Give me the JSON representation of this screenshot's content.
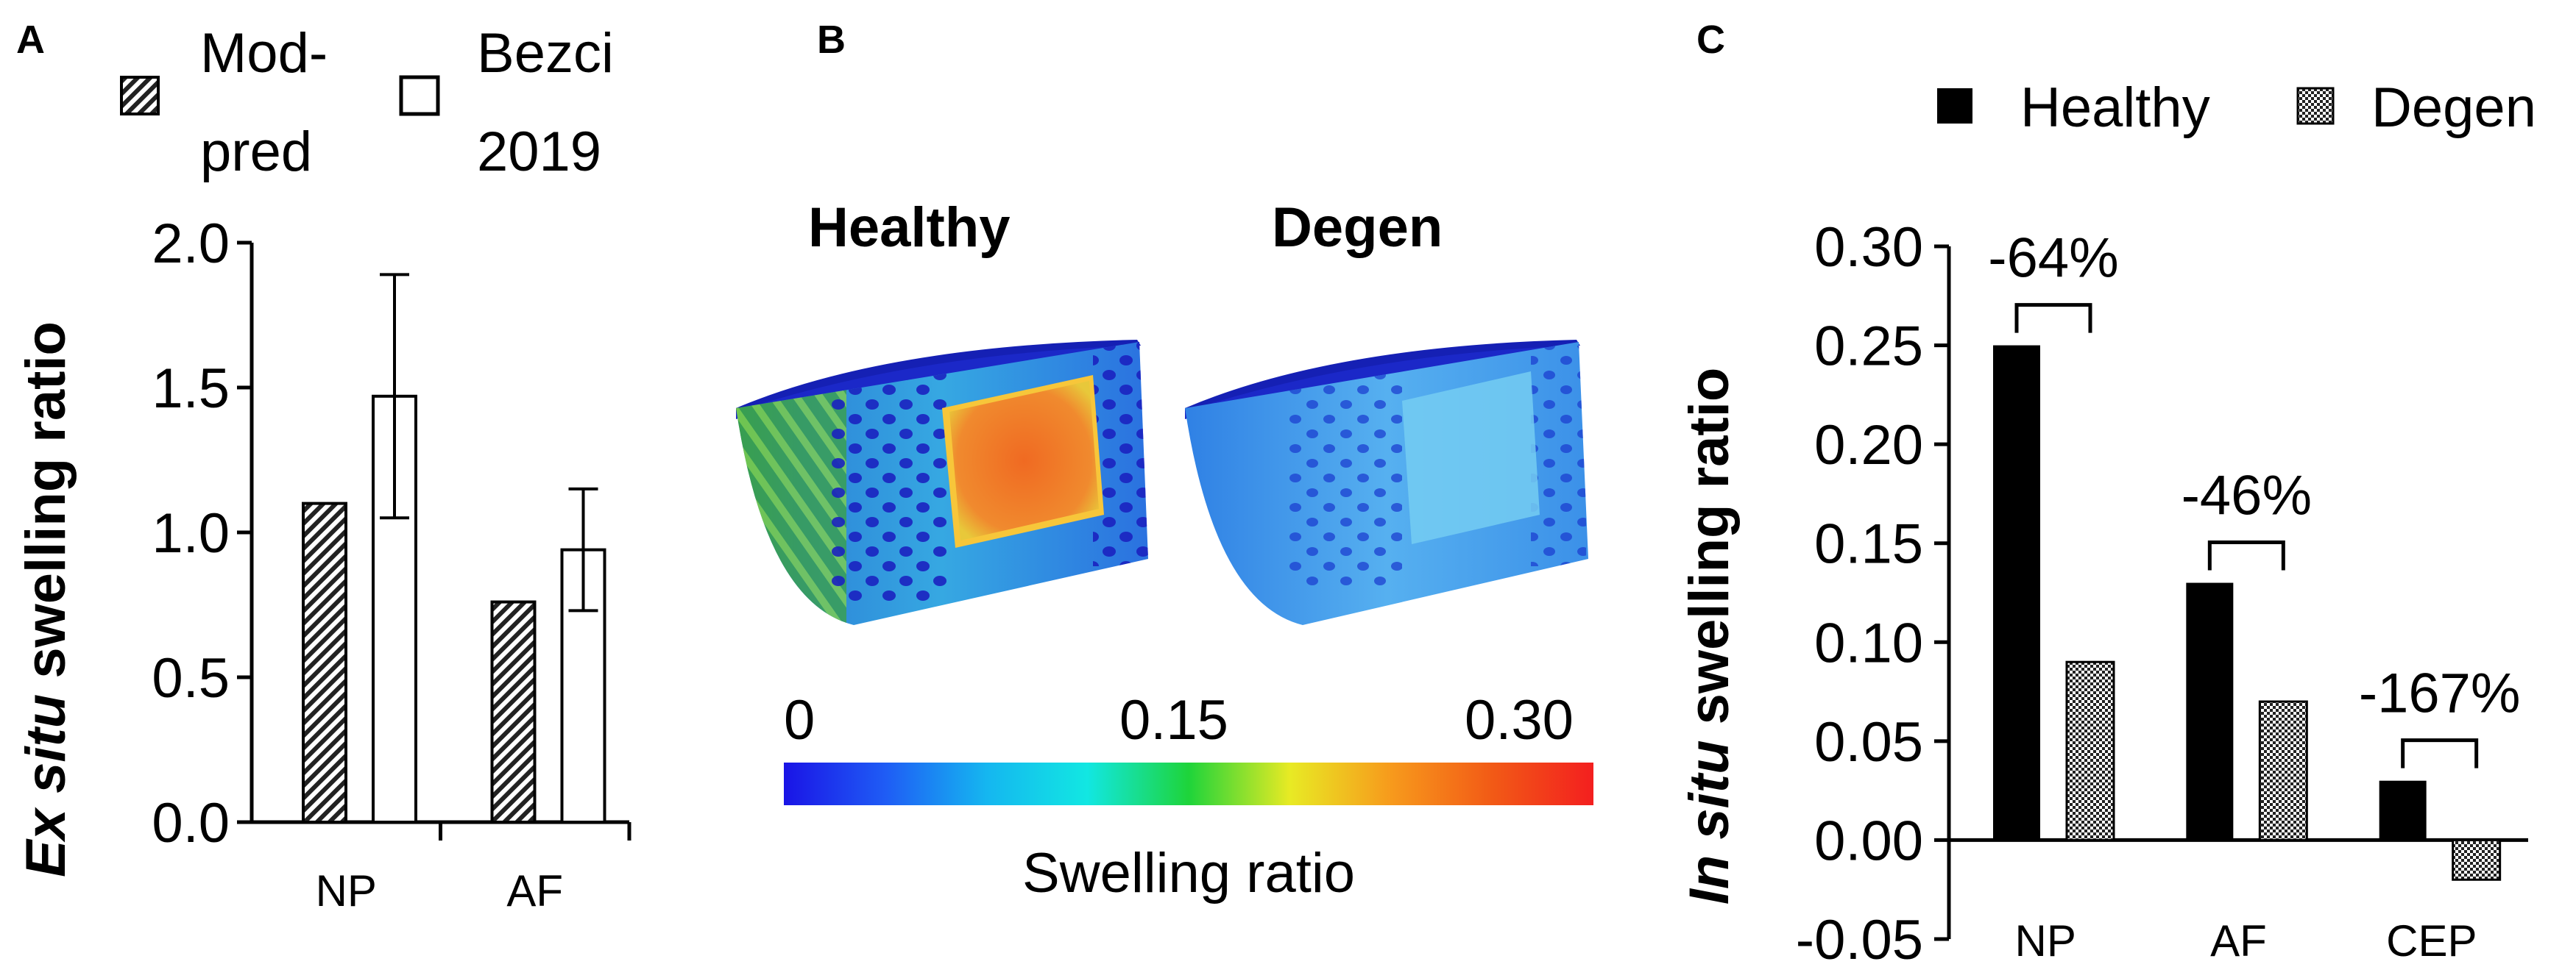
{
  "panels": {
    "a": {
      "letter": "A",
      "legend": [
        {
          "line1": "Mod-",
          "line2": "pred",
          "pattern": "hatch"
        },
        {
          "line1": "Bezci",
          "line2": "2019",
          "pattern": "white"
        }
      ],
      "ylabel_italic": "Ex situ",
      "ylabel_rest": " swelling ratio"
    },
    "b": {
      "letter": "B",
      "label_healthy": "Healthy",
      "label_degen": "Degen",
      "colorbar": {
        "title": "Swelling ratio",
        "min_label": "0",
        "mid_label": "0.15",
        "max_label": "0.30",
        "min": 0,
        "max": 0.3,
        "colors": [
          "#1a14e6",
          "#1f5cf5",
          "#15b6f0",
          "#12e7e2",
          "#1ed43a",
          "#e8ea24",
          "#f79a1c",
          "#f25a16",
          "#f31f1f"
        ]
      },
      "model_colors": {
        "healthy_core": "#f07a2a",
        "healthy_body": "#2a78e8",
        "healthy_side": "#3fae4a",
        "degen_body": "#3c9ae8",
        "degen_core": "#6cc8f2",
        "top": "#1b28c8",
        "pores": "#1a22c0"
      }
    },
    "c": {
      "letter": "C",
      "legend": [
        {
          "label": "Healthy",
          "pattern": "solid"
        },
        {
          "label": "Degen",
          "pattern": "check"
        }
      ],
      "ylabel_italic": "In situ",
      "ylabel_rest": " swelling ratio",
      "annotations": [
        "-64%",
        "-46%",
        "-167%"
      ]
    }
  },
  "chart_data": [
    {
      "type": "bar",
      "panel": "A",
      "title": "",
      "categories": [
        "NP",
        "AF"
      ],
      "series": [
        {
          "name": "Mod-pred",
          "values": [
            1.1,
            0.76
          ],
          "errors": null
        },
        {
          "name": "Bezci 2019",
          "values": [
            1.47,
            0.94
          ],
          "errors": [
            0.42,
            0.21
          ]
        }
      ],
      "ylim": [
        0,
        2.0
      ],
      "yticks": [
        "0.0",
        "0.5",
        "1.0",
        "1.5",
        "2.0"
      ],
      "ylabel": "Ex situ swelling ratio",
      "xlabel": ""
    },
    {
      "type": "bar",
      "panel": "C",
      "title": "",
      "categories": [
        "NP",
        "AF",
        "CEP"
      ],
      "series": [
        {
          "name": "Healthy",
          "values": [
            0.25,
            0.13,
            0.03
          ]
        },
        {
          "name": "Degen",
          "values": [
            0.09,
            0.07,
            -0.02
          ]
        }
      ],
      "ylim": [
        -0.05,
        0.3
      ],
      "yticks": [
        "-0.05",
        "0.00",
        "0.05",
        "0.10",
        "0.15",
        "0.20",
        "0.25",
        "0.30"
      ],
      "ylabel": "In situ swelling ratio",
      "xlabel": "",
      "annotations": [
        "-64%",
        "-46%",
        "-167%"
      ]
    }
  ]
}
